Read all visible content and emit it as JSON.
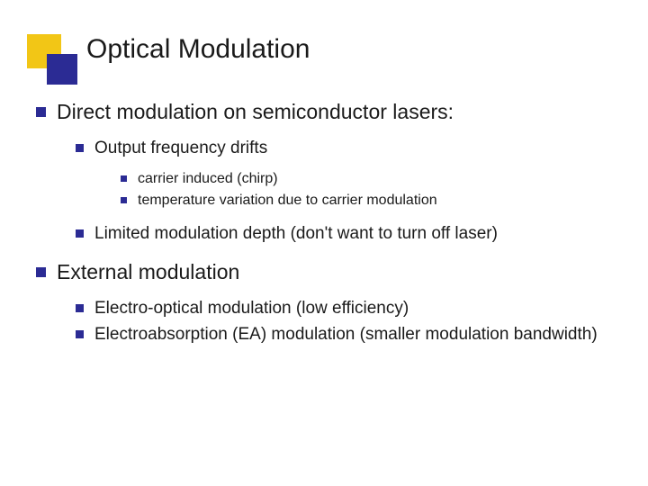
{
  "title": "Optical Modulation",
  "colors": {
    "bullet": "#2b2b94",
    "accent_yellow": "#f2c616",
    "accent_blue": "#2b2b94",
    "text": "#1a1a1a",
    "background": "#ffffff"
  },
  "typography": {
    "title_fontsize": 30,
    "lvl1_fontsize": 23,
    "lvl2_fontsize": 19,
    "lvl3_fontsize": 16,
    "font_family": "Verdana"
  },
  "bullets": {
    "lvl1_size": 11,
    "lvl2_size": 9,
    "lvl3_size": 7
  },
  "items": {
    "l1a": "Direct modulation on semiconductor lasers:",
    "l2a": "Output frequency drifts",
    "l3a": "carrier induced (chirp)",
    "l3b": "temperature variation due to carrier modulation",
    "l2b": "Limited modulation depth (don't want to turn off laser)",
    "l1b": "External modulation",
    "l2c": "Electro-optical modulation (low efficiency)",
    "l2d": "Electroabsorption (EA) modulation (smaller modulation bandwidth)"
  }
}
